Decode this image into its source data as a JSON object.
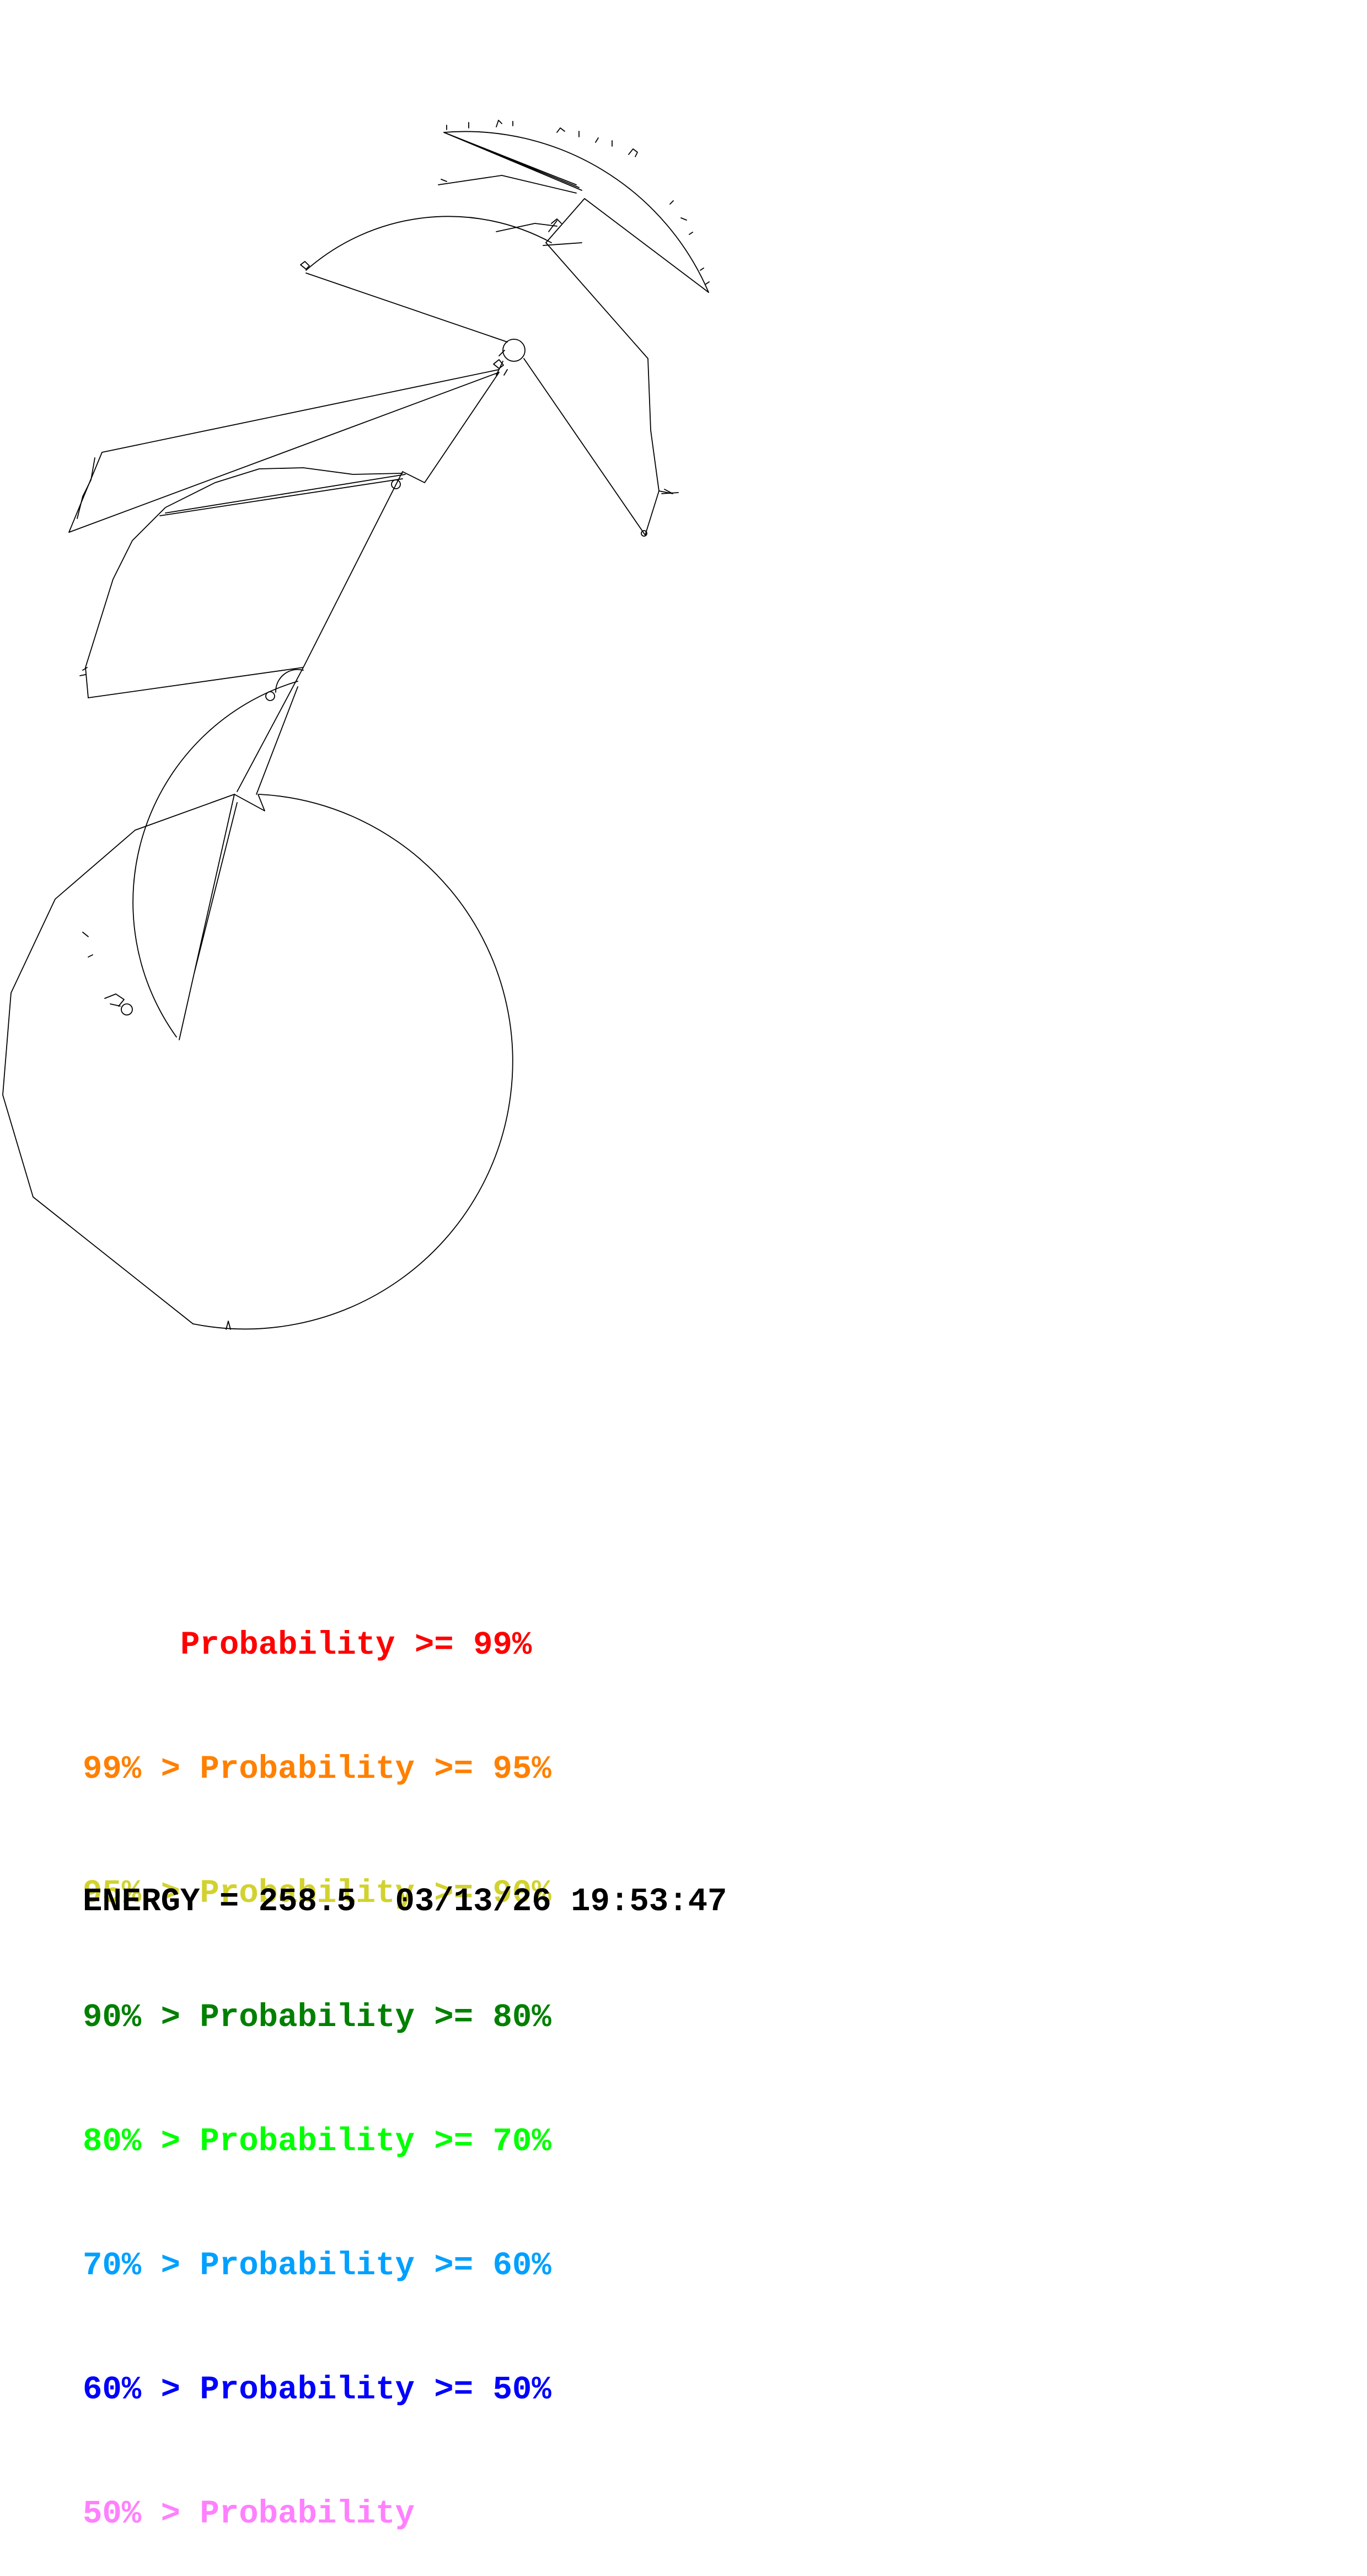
{
  "legend": {
    "entries": [
      {
        "text": "     Probability >= 99%",
        "color": "#ff0000"
      },
      {
        "text": "99% > Probability >= 95%",
        "color": "#ff8000"
      },
      {
        "text": "95% > Probability >= 90%",
        "color": "#d2d22e"
      },
      {
        "text": "90% > Probability >= 80%",
        "color": "#008000"
      },
      {
        "text": "80% > Probability >= 70%",
        "color": "#00ff00"
      },
      {
        "text": "70% > Probability >= 60%",
        "color": "#00a0ff"
      },
      {
        "text": "60% > Probability >= 50%",
        "color": "#0000ff"
      },
      {
        "text": "50% > Probability",
        "color": "#ff80ff"
      }
    ]
  },
  "footer": {
    "energy": "ENERGY = 258.5",
    "datetime": "03/13/26 19:53:47"
  },
  "structure": {
    "line_color": "#000000"
  }
}
